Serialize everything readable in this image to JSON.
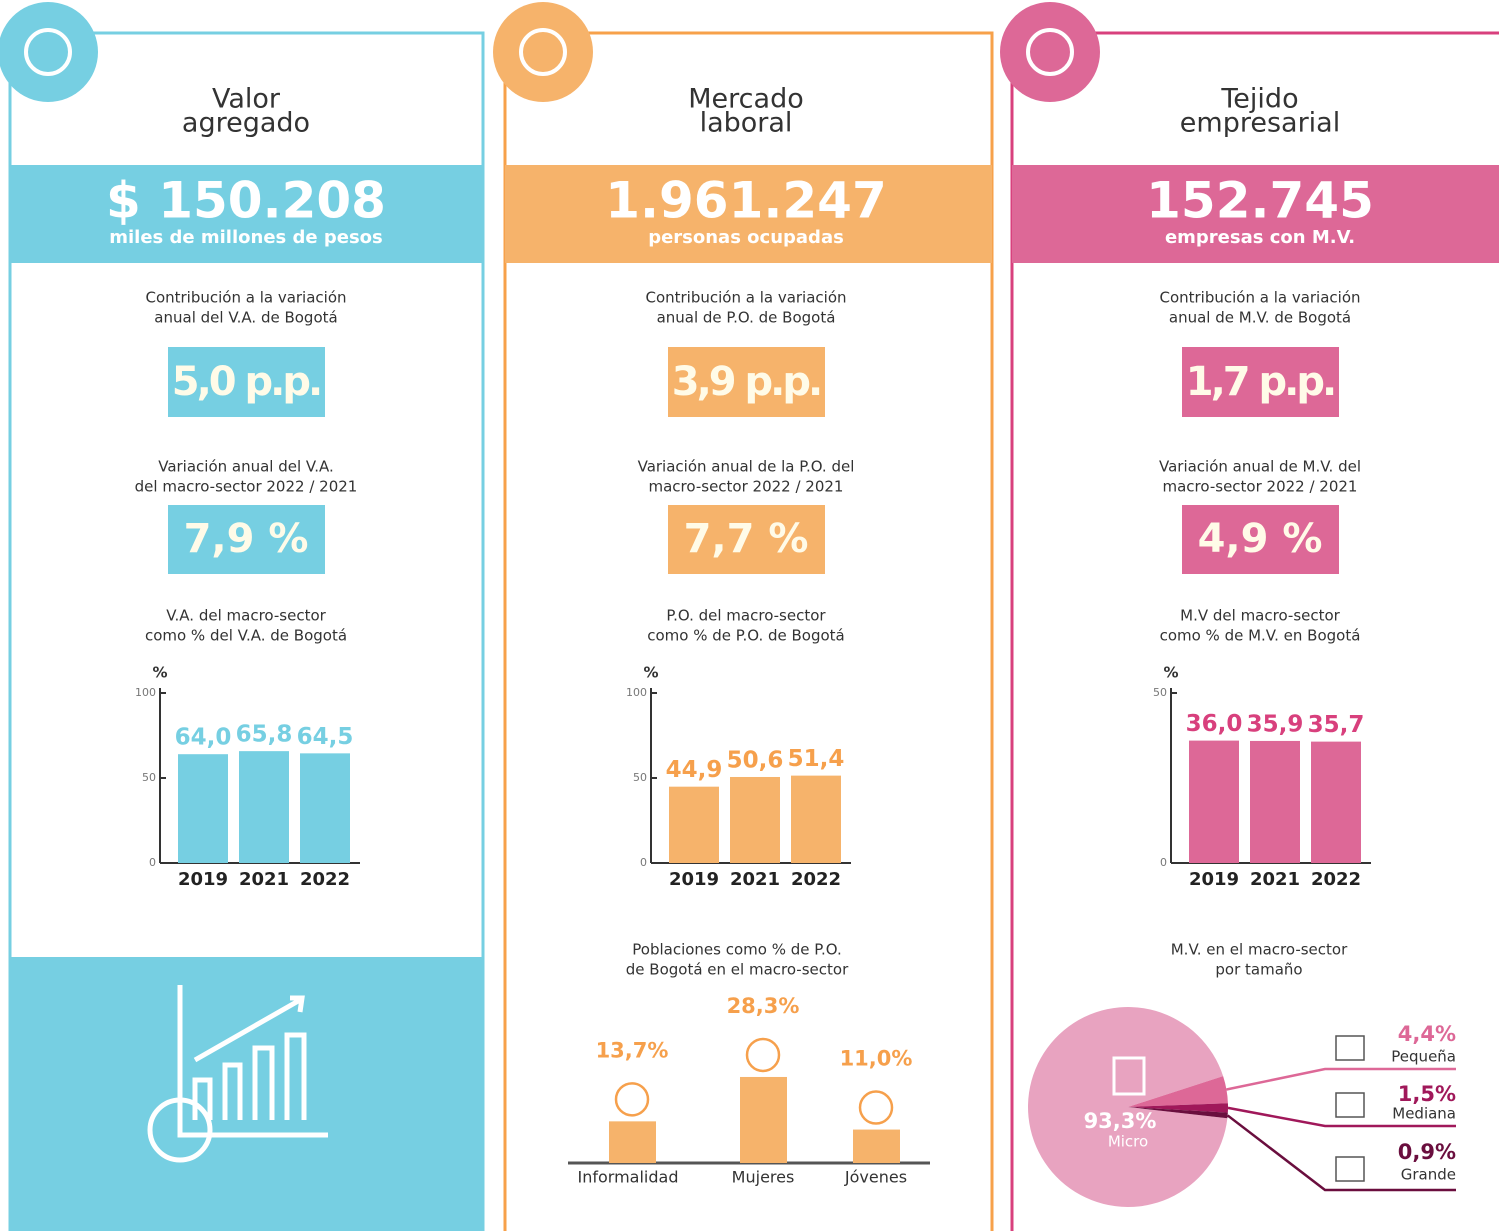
{
  "panels": [
    {
      "title": [
        "Valor",
        "agregado"
      ],
      "headline": "$ 150.208",
      "headline_sub": "miles de millones de pesos",
      "contribution_label": [
        "Contribución a la variación",
        "anual del V.A. de Bogotá"
      ],
      "contribution": "5,0 p.p.",
      "variation_label": [
        "Variación anual del V.A.",
        "del macro-sector 2022 / 2021"
      ],
      "variation": "7,9 %",
      "share_label": [
        "V.A. del macro-sector",
        "como % del V.A. de Bogotá"
      ],
      "color": "#76cfe2",
      "border": "#76cfe2"
    },
    {
      "title": [
        "Mercado",
        "laboral"
      ],
      "headline": "1.961.247",
      "headline_sub": "personas ocupadas",
      "contribution_label": [
        "Contribución a la variación",
        "anual de P.O. de Bogotá"
      ],
      "contribution": "3,9 p.p.",
      "variation_label": [
        "Variación anual de la P.O. del",
        "macro-sector 2022 / 2021"
      ],
      "variation": "7,7 %",
      "share_label": [
        "P.O. del macro-sector",
        "como % de P.O. de Bogotá"
      ],
      "color": "#f6b36b",
      "border": "#f7a14a"
    },
    {
      "title": [
        "Tejido",
        "empresarial"
      ],
      "headline": "152.745",
      "headline_sub": "empresas con M.V.",
      "contribution_label": [
        "Contribución a la variación",
        "anual de M.V. de Bogotá"
      ],
      "contribution": "1,7 p.p.",
      "variation_label": [
        "Variación anual de M.V. del",
        "macro-sector 2022 / 2021"
      ],
      "variation": "4,9 %",
      "share_label": [
        "M.V del macro-sector",
        "como % de M.V. en Bogotá"
      ],
      "color": "#dd6897",
      "border": "#d8407d"
    }
  ],
  "chart_data": [
    {
      "type": "bar",
      "y_label": "%",
      "categories": [
        "2019",
        "2021",
        "2022"
      ],
      "values": [
        64.0,
        65.8,
        64.5
      ],
      "value_labels": [
        "64,0",
        "65,8",
        "64,5"
      ],
      "ylim": [
        0,
        100
      ],
      "yticks": [
        0,
        50,
        100
      ],
      "color": "#76cfe2",
      "value_label_color": "#76cfe2"
    },
    {
      "type": "bar",
      "y_label": "%",
      "categories": [
        "2019",
        "2021",
        "2022"
      ],
      "values": [
        44.9,
        50.6,
        51.4
      ],
      "value_labels": [
        "44,9",
        "50,6",
        "51,4"
      ],
      "ylim": [
        0,
        100
      ],
      "yticks": [
        0,
        50,
        100
      ],
      "color": "#f6b36b",
      "value_label_color": "#f6a04c"
    },
    {
      "type": "bar",
      "y_label": "%",
      "categories": [
        "2019",
        "2021",
        "2022"
      ],
      "values": [
        36.0,
        35.9,
        35.7
      ],
      "value_labels": [
        "36,0",
        "35,9",
        "35,7"
      ],
      "ylim": [
        0,
        50
      ],
      "yticks": [
        0,
        50
      ],
      "color": "#dd6897",
      "value_label_color": "#d8407d"
    },
    {
      "type": "population",
      "title": [
        "Poblaciones como % de P.O.",
        "de Bogotá en el macro-sector"
      ],
      "categories": [
        "Informalidad",
        "Mujeres",
        "Jóvenes"
      ],
      "values": [
        13.7,
        28.3,
        11.0
      ],
      "value_labels": [
        "13,7%",
        "28,3%",
        "11,0%"
      ],
      "color": "#f6b36b",
      "value_label_color": "#f6a04c"
    },
    {
      "type": "pie",
      "title": [
        "M.V. en el macro-sector",
        "por tamaño"
      ],
      "categories": [
        "Micro",
        "Pequeña",
        "Mediana",
        "Grande"
      ],
      "values": [
        93.3,
        4.4,
        1.5,
        0.9
      ],
      "value_labels": [
        "93,3%",
        "4,4%",
        "1,5%",
        "0,9%"
      ],
      "colors": [
        "#e8a3c0",
        "#dd6897",
        "#a0185a",
        "#6a0e3e"
      ]
    }
  ]
}
